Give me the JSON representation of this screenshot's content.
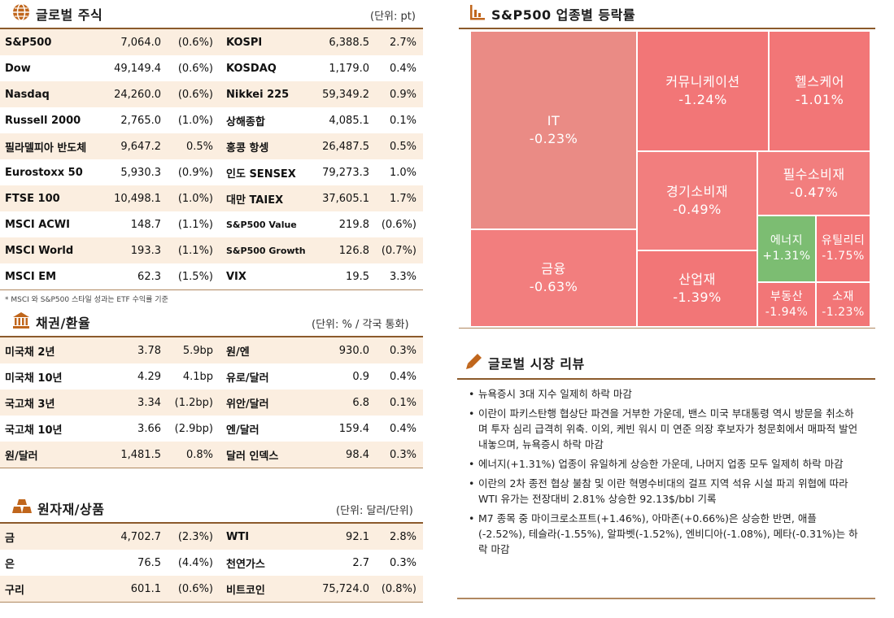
{
  "global_stocks": {
    "title": "글로벌 주식",
    "unit": "(단위: pt)",
    "rows": [
      {
        "n1": "S&P500",
        "v1": "7,064.0",
        "c1": "(0.6%)",
        "n2": "KOSPI",
        "v2": "6,388.5",
        "c2": "2.7%"
      },
      {
        "n1": "Dow",
        "v1": "49,149.4",
        "c1": "(0.6%)",
        "n2": "KOSDAQ",
        "v2": "1,179.0",
        "c2": "0.4%"
      },
      {
        "n1": "Nasdaq",
        "v1": "24,260.0",
        "c1": "(0.6%)",
        "n2": "Nikkei 225",
        "v2": "59,349.2",
        "c2": "0.9%"
      },
      {
        "n1": "Russell 2000",
        "v1": "2,765.0",
        "c1": "(1.0%)",
        "n2": "상해종합",
        "v2": "4,085.1",
        "c2": "0.1%"
      },
      {
        "n1": "필라델피아 반도체",
        "v1": "9,647.2",
        "c1": "0.5%",
        "n2": "홍콩 항셍",
        "v2": "26,487.5",
        "c2": "0.5%"
      },
      {
        "n1": "Eurostoxx 50",
        "v1": "5,930.3",
        "c1": "(0.9%)",
        "n2": "인도 SENSEX",
        "v2": "79,273.3",
        "c2": "1.0%"
      },
      {
        "n1": "FTSE 100",
        "v1": "10,498.1",
        "c1": "(1.0%)",
        "n2": "대만 TAIEX",
        "v2": "37,605.1",
        "c2": "1.7%"
      },
      {
        "n1": "MSCI ACWI",
        "v1": "148.7",
        "c1": "(1.1%)",
        "n2": "S&P500 Value",
        "v2": "219.8",
        "c2": "(0.6%)"
      },
      {
        "n1": "MSCI World",
        "v1": "193.3",
        "c1": "(1.1%)",
        "n2": "S&P500 Growth",
        "v2": "126.8",
        "c2": "(0.7%)"
      },
      {
        "n1": "MSCI EM",
        "v1": "62.3",
        "c1": "(1.5%)",
        "n2": "VIX",
        "v2": "19.5",
        "c2": "3.3%"
      }
    ],
    "footnote": "* MSCI 와 S&P500 스타일 성과는 ETF 수익률 기준"
  },
  "bonds_fx": {
    "title": "채권/환율",
    "unit": "(단위: % / 각국 통화)",
    "rows": [
      {
        "n1": "미국채 2년",
        "v1": "3.78",
        "c1": "5.9bp",
        "n2": "원/엔",
        "v2": "930.0",
        "c2": "0.3%"
      },
      {
        "n1": "미국채 10년",
        "v1": "4.29",
        "c1": "4.1bp",
        "n2": "유로/달러",
        "v2": "0.9",
        "c2": "0.4%"
      },
      {
        "n1": "국고채 3년",
        "v1": "3.34",
        "c1": "(1.2bp)",
        "n2": "위안/달러",
        "v2": "6.8",
        "c2": "0.1%"
      },
      {
        "n1": "국고채 10년",
        "v1": "3.66",
        "c1": "(2.9bp)",
        "n2": "엔/달러",
        "v2": "159.4",
        "c2": "0.4%"
      },
      {
        "n1": "원/달러",
        "v1": "1,481.5",
        "c1": "0.8%",
        "n2": "달러 인덱스",
        "v2": "98.4",
        "c2": "0.3%"
      }
    ]
  },
  "commodities": {
    "title": "원자재/상품",
    "unit": "(단위: 달러/단위)",
    "rows": [
      {
        "n1": "금",
        "v1": "4,702.7",
        "c1": "(2.3%)",
        "n2": "WTI",
        "v2": "92.1",
        "c2": "2.8%"
      },
      {
        "n1": "은",
        "v1": "76.5",
        "c1": "(4.4%)",
        "n2": "천연가스",
        "v2": "2.7",
        "c2": "0.3%"
      },
      {
        "n1": "구리",
        "v1": "601.1",
        "c1": "(0.6%)",
        "n2": "비트코인",
        "v2": "75,724.0",
        "c2": "(0.8%)"
      }
    ]
  },
  "sector_map": {
    "title": "S&P500 업종별 등락률",
    "colors": {
      "down_light": "#ea8b85",
      "down": "#f2797a",
      "up": "#7cbd72"
    },
    "tiles": [
      {
        "id": "it",
        "name": "IT",
        "value": "-0.23%",
        "color": "#ea8b85"
      },
      {
        "id": "financials",
        "name": "금융",
        "value": "-0.63%",
        "color": "#f27e7e"
      },
      {
        "id": "communication",
        "name": "커뮤니케이션",
        "value": "-1.24%",
        "color": "#f27677"
      },
      {
        "id": "healthcare",
        "name": "헬스케어",
        "value": "-1.01%",
        "color": "#f27677"
      },
      {
        "id": "consumer-disc",
        "name": "경기소비재",
        "value": "-0.49%",
        "color": "#f27e7e"
      },
      {
        "id": "consumer-staples",
        "name": "필수소비재",
        "value": "-0.47%",
        "color": "#f27e7e"
      },
      {
        "id": "energy",
        "name": "에너지",
        "value": "+1.31%",
        "color": "#7cbd72"
      },
      {
        "id": "utilities",
        "name": "유틸리티",
        "value": "-1.75%",
        "color": "#f27677"
      },
      {
        "id": "industrials",
        "name": "산업재",
        "value": "-1.39%",
        "color": "#f27677"
      },
      {
        "id": "real-estate",
        "name": "부동산",
        "value": "-1.94%",
        "color": "#f27677"
      },
      {
        "id": "materials",
        "name": "소재",
        "value": "-1.23%",
        "color": "#f27677"
      }
    ]
  },
  "market_review": {
    "title": "글로벌 시장 리뷰",
    "items": [
      "뉴욕증시 3대 지수 일제히 하락 마감",
      "이란이 파키스탄행 협상단 파견을 거부한 가운데, 밴스 미국 부대통령 역시 방문을 취소하며 투자 심리 급격히 위축. 이외, 케빈 워시 미 연준 의장 후보자가 청문회에서 매파적 발언 내놓으며, 뉴욕증시 하락 마감",
      "에너지(+1.31%) 업종이 유일하게 상승한 가운데, 나머지 업종 모두 일제히 하락 마감",
      "이란의 2차 종전 협상 불참 및 이란 혁명수비대의 걸프 지역 석유 시설 파괴 위협에 따라 WTI 유가는 전장대비 2.81% 상승한 92.13$/bbl 기록",
      "M7 종목 중 마이크로소프트(+1.46%), 아마존(+0.66%)은 상승한 반면, 애플(-2.52%), 테슬라(-1.55%), 알파벳(-1.52%), 엔비디아(-1.08%), 메타(-0.31%)는 하락 마감"
    ]
  }
}
